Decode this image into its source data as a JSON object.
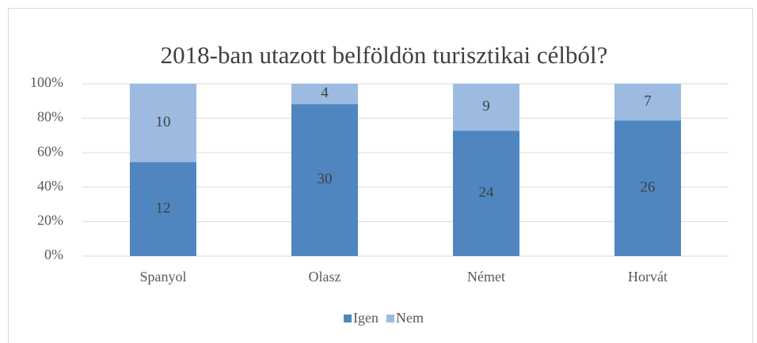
{
  "chart_data": {
    "type": "bar",
    "stacking": "percent",
    "title": "2018-ban utazott belföldön turisztikai célból?",
    "categories": [
      "Spanyol",
      "Olasz",
      "Német",
      "Horvát"
    ],
    "series": [
      {
        "name": "Igen",
        "color": "#4f86c0",
        "values": [
          12,
          30,
          24,
          26
        ]
      },
      {
        "name": "Nem",
        "color": "#9dbbe1",
        "values": [
          10,
          4,
          9,
          7
        ]
      }
    ],
    "ylim": [
      0,
      100
    ],
    "yticks": [
      {
        "value": 0,
        "label": "0%"
      },
      {
        "value": 20,
        "label": "20%"
      },
      {
        "value": 40,
        "label": "40%"
      },
      {
        "value": 60,
        "label": "60%"
      },
      {
        "value": 80,
        "label": "80%"
      },
      {
        "value": 100,
        "label": "100%"
      }
    ],
    "grid": true,
    "legend": "bottom"
  }
}
